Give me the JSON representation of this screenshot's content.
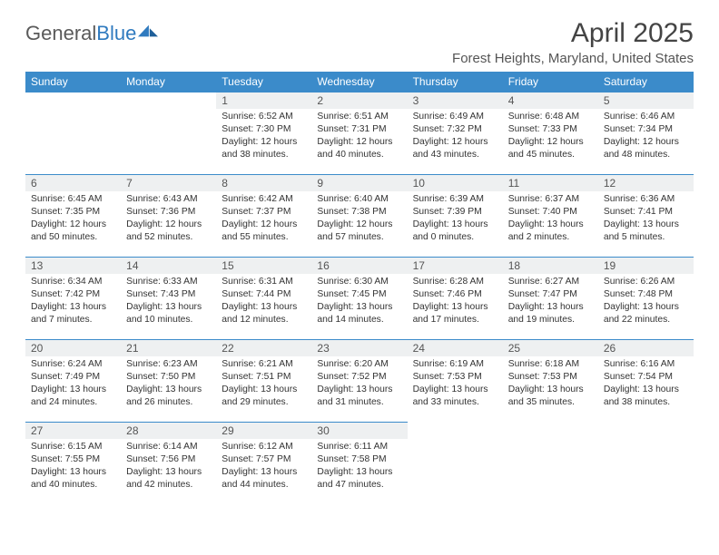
{
  "brand": {
    "general": "General",
    "blue": "Blue"
  },
  "title": "April 2025",
  "location": "Forest Heights, Maryland, United States",
  "colors": {
    "header_bg": "#3b8bca",
    "header_text": "#ffffff",
    "daynum_bg": "#eef0f1",
    "cell_border": "#3b8bca",
    "logo_gray": "#5a5a5a",
    "logo_blue": "#2f7abf"
  },
  "weekdays": [
    "Sunday",
    "Monday",
    "Tuesday",
    "Wednesday",
    "Thursday",
    "Friday",
    "Saturday"
  ],
  "weeks": [
    [
      null,
      null,
      {
        "n": "1",
        "sr": "Sunrise: 6:52 AM",
        "ss": "Sunset: 7:30 PM",
        "dl1": "Daylight: 12 hours",
        "dl2": "and 38 minutes."
      },
      {
        "n": "2",
        "sr": "Sunrise: 6:51 AM",
        "ss": "Sunset: 7:31 PM",
        "dl1": "Daylight: 12 hours",
        "dl2": "and 40 minutes."
      },
      {
        "n": "3",
        "sr": "Sunrise: 6:49 AM",
        "ss": "Sunset: 7:32 PM",
        "dl1": "Daylight: 12 hours",
        "dl2": "and 43 minutes."
      },
      {
        "n": "4",
        "sr": "Sunrise: 6:48 AM",
        "ss": "Sunset: 7:33 PM",
        "dl1": "Daylight: 12 hours",
        "dl2": "and 45 minutes."
      },
      {
        "n": "5",
        "sr": "Sunrise: 6:46 AM",
        "ss": "Sunset: 7:34 PM",
        "dl1": "Daylight: 12 hours",
        "dl2": "and 48 minutes."
      }
    ],
    [
      {
        "n": "6",
        "sr": "Sunrise: 6:45 AM",
        "ss": "Sunset: 7:35 PM",
        "dl1": "Daylight: 12 hours",
        "dl2": "and 50 minutes."
      },
      {
        "n": "7",
        "sr": "Sunrise: 6:43 AM",
        "ss": "Sunset: 7:36 PM",
        "dl1": "Daylight: 12 hours",
        "dl2": "and 52 minutes."
      },
      {
        "n": "8",
        "sr": "Sunrise: 6:42 AM",
        "ss": "Sunset: 7:37 PM",
        "dl1": "Daylight: 12 hours",
        "dl2": "and 55 minutes."
      },
      {
        "n": "9",
        "sr": "Sunrise: 6:40 AM",
        "ss": "Sunset: 7:38 PM",
        "dl1": "Daylight: 12 hours",
        "dl2": "and 57 minutes."
      },
      {
        "n": "10",
        "sr": "Sunrise: 6:39 AM",
        "ss": "Sunset: 7:39 PM",
        "dl1": "Daylight: 13 hours",
        "dl2": "and 0 minutes."
      },
      {
        "n": "11",
        "sr": "Sunrise: 6:37 AM",
        "ss": "Sunset: 7:40 PM",
        "dl1": "Daylight: 13 hours",
        "dl2": "and 2 minutes."
      },
      {
        "n": "12",
        "sr": "Sunrise: 6:36 AM",
        "ss": "Sunset: 7:41 PM",
        "dl1": "Daylight: 13 hours",
        "dl2": "and 5 minutes."
      }
    ],
    [
      {
        "n": "13",
        "sr": "Sunrise: 6:34 AM",
        "ss": "Sunset: 7:42 PM",
        "dl1": "Daylight: 13 hours",
        "dl2": "and 7 minutes."
      },
      {
        "n": "14",
        "sr": "Sunrise: 6:33 AM",
        "ss": "Sunset: 7:43 PM",
        "dl1": "Daylight: 13 hours",
        "dl2": "and 10 minutes."
      },
      {
        "n": "15",
        "sr": "Sunrise: 6:31 AM",
        "ss": "Sunset: 7:44 PM",
        "dl1": "Daylight: 13 hours",
        "dl2": "and 12 minutes."
      },
      {
        "n": "16",
        "sr": "Sunrise: 6:30 AM",
        "ss": "Sunset: 7:45 PM",
        "dl1": "Daylight: 13 hours",
        "dl2": "and 14 minutes."
      },
      {
        "n": "17",
        "sr": "Sunrise: 6:28 AM",
        "ss": "Sunset: 7:46 PM",
        "dl1": "Daylight: 13 hours",
        "dl2": "and 17 minutes."
      },
      {
        "n": "18",
        "sr": "Sunrise: 6:27 AM",
        "ss": "Sunset: 7:47 PM",
        "dl1": "Daylight: 13 hours",
        "dl2": "and 19 minutes."
      },
      {
        "n": "19",
        "sr": "Sunrise: 6:26 AM",
        "ss": "Sunset: 7:48 PM",
        "dl1": "Daylight: 13 hours",
        "dl2": "and 22 minutes."
      }
    ],
    [
      {
        "n": "20",
        "sr": "Sunrise: 6:24 AM",
        "ss": "Sunset: 7:49 PM",
        "dl1": "Daylight: 13 hours",
        "dl2": "and 24 minutes."
      },
      {
        "n": "21",
        "sr": "Sunrise: 6:23 AM",
        "ss": "Sunset: 7:50 PM",
        "dl1": "Daylight: 13 hours",
        "dl2": "and 26 minutes."
      },
      {
        "n": "22",
        "sr": "Sunrise: 6:21 AM",
        "ss": "Sunset: 7:51 PM",
        "dl1": "Daylight: 13 hours",
        "dl2": "and 29 minutes."
      },
      {
        "n": "23",
        "sr": "Sunrise: 6:20 AM",
        "ss": "Sunset: 7:52 PM",
        "dl1": "Daylight: 13 hours",
        "dl2": "and 31 minutes."
      },
      {
        "n": "24",
        "sr": "Sunrise: 6:19 AM",
        "ss": "Sunset: 7:53 PM",
        "dl1": "Daylight: 13 hours",
        "dl2": "and 33 minutes."
      },
      {
        "n": "25",
        "sr": "Sunrise: 6:18 AM",
        "ss": "Sunset: 7:53 PM",
        "dl1": "Daylight: 13 hours",
        "dl2": "and 35 minutes."
      },
      {
        "n": "26",
        "sr": "Sunrise: 6:16 AM",
        "ss": "Sunset: 7:54 PM",
        "dl1": "Daylight: 13 hours",
        "dl2": "and 38 minutes."
      }
    ],
    [
      {
        "n": "27",
        "sr": "Sunrise: 6:15 AM",
        "ss": "Sunset: 7:55 PM",
        "dl1": "Daylight: 13 hours",
        "dl2": "and 40 minutes."
      },
      {
        "n": "28",
        "sr": "Sunrise: 6:14 AM",
        "ss": "Sunset: 7:56 PM",
        "dl1": "Daylight: 13 hours",
        "dl2": "and 42 minutes."
      },
      {
        "n": "29",
        "sr": "Sunrise: 6:12 AM",
        "ss": "Sunset: 7:57 PM",
        "dl1": "Daylight: 13 hours",
        "dl2": "and 44 minutes."
      },
      {
        "n": "30",
        "sr": "Sunrise: 6:11 AM",
        "ss": "Sunset: 7:58 PM",
        "dl1": "Daylight: 13 hours",
        "dl2": "and 47 minutes."
      },
      null,
      null,
      null
    ]
  ]
}
